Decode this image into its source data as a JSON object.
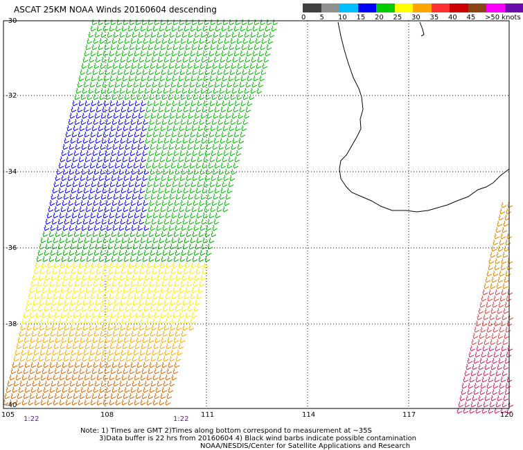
{
  "title": "ASCAT 25KM NOAA Winds 20160604 descending",
  "scale": {
    "colors": [
      "#404040",
      "#909090",
      "#00bfff",
      "#0000ff",
      "#00cc00",
      "#ffff00",
      "#ffa500",
      "#ff3030",
      "#cc0000",
      "#8b4513",
      "#ff00ff",
      "#6a0dad"
    ],
    "labels": [
      "0",
      "5",
      "10",
      "15",
      "20",
      "25",
      "30",
      "35",
      "40",
      "45",
      ">50 knots"
    ]
  },
  "axes": {
    "lat_labels": [
      "-30",
      "-32",
      "-34",
      "-36",
      "-38",
      "-40"
    ],
    "lon_labels": [
      "105",
      "108",
      "111",
      "114",
      "117",
      "120"
    ]
  },
  "times": [
    "1:22",
    "1:22"
  ],
  "notes": {
    "line1": "Note: 1) Times are GMT 2)Times along bottom correspond to measurement at ~35S",
    "line2": "3)Data buffer is 22 hrs from 20160604 4) Black wind barbs indicate possible contamination",
    "line3": "NOAA/NESDIS/Center for Satellite Applications and Research"
  }
}
